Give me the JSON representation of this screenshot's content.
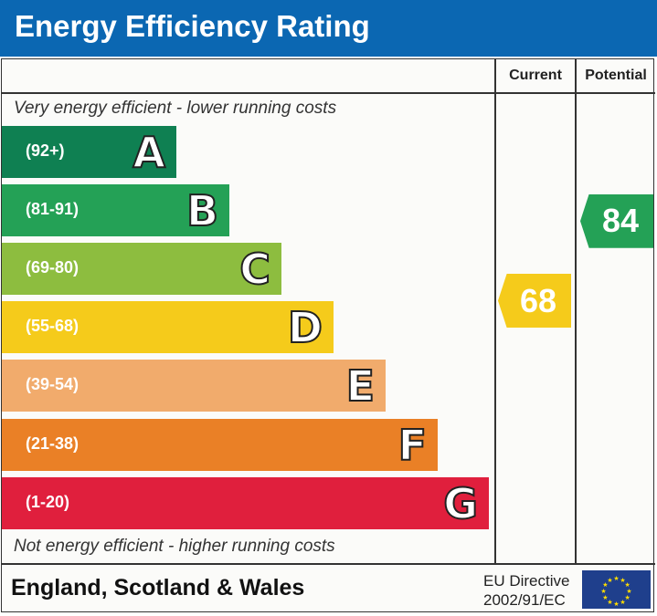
{
  "title": "Energy Efficiency Rating",
  "headers": {
    "current": "Current",
    "potential": "Potential"
  },
  "top_note": "Very energy efficient - lower running costs",
  "bottom_note": "Not energy efficient - higher running costs",
  "footer": {
    "country": "England, Scotland & Wales",
    "directive_line1": "EU Directive",
    "directive_line2": "2002/91/EC",
    "flag_icon": "eu-flag-icon"
  },
  "chart_data": {
    "type": "bar",
    "categories": [
      "A",
      "B",
      "C",
      "D",
      "E",
      "F",
      "G"
    ],
    "ranges": [
      "(92+)",
      "(81-91)",
      "(69-80)",
      "(55-68)",
      "(39-54)",
      "(21-38)",
      "(1-20)"
    ],
    "colors": [
      "#0f8052",
      "#24a156",
      "#8dbd3f",
      "#f5cb1b",
      "#f1ab6c",
      "#ea8026",
      "#e01f3d"
    ],
    "current": {
      "value": 68,
      "band": "D",
      "color": "#f5cb1b"
    },
    "potential": {
      "value": 84,
      "band": "B",
      "color": "#24a156"
    }
  }
}
